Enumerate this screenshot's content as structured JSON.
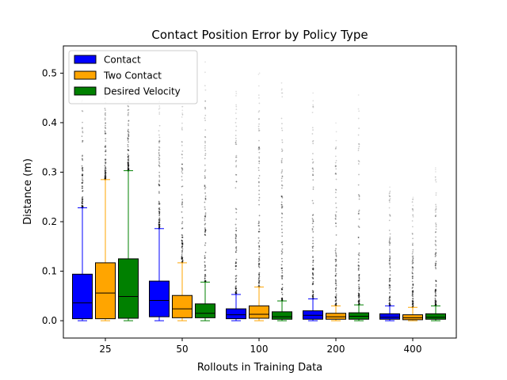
{
  "chart_data": {
    "type": "box",
    "title": "Contact Position Error by Policy Type",
    "xlabel": "Rollouts in Training Data",
    "ylabel": "Distance (m)",
    "categories": [
      "25",
      "50",
      "100",
      "200",
      "400"
    ],
    "ylim": [
      -0.035,
      0.555
    ],
    "yticks": [
      0.0,
      0.1,
      0.2,
      0.3,
      0.4,
      0.5
    ],
    "ytick_labels": [
      "0.0",
      "0.1",
      "0.2",
      "0.3",
      "0.4",
      "0.5"
    ],
    "legend_position": "top-left",
    "grid": false,
    "series": [
      {
        "name": "Contact",
        "color": "#0000ff",
        "boxes": [
          {
            "category": "25",
            "whislo": 0.0,
            "q1": 0.004,
            "med": 0.036,
            "q3": 0.094,
            "whishi": 0.228,
            "flier_max": 0.51
          },
          {
            "category": "50",
            "whislo": 0.0,
            "q1": 0.008,
            "med": 0.041,
            "q3": 0.08,
            "whishi": 0.186,
            "flier_max": 0.45
          },
          {
            "category": "100",
            "whislo": 0.0,
            "q1": 0.004,
            "med": 0.012,
            "q3": 0.024,
            "whishi": 0.053,
            "flier_max": 0.48
          },
          {
            "category": "200",
            "whislo": 0.0,
            "q1": 0.003,
            "med": 0.011,
            "q3": 0.02,
            "whishi": 0.044,
            "flier_max": 0.47
          },
          {
            "category": "400",
            "whislo": 0.0,
            "q1": 0.003,
            "med": 0.007,
            "q3": 0.014,
            "whishi": 0.03,
            "flier_max": 0.28
          }
        ]
      },
      {
        "name": "Two Contact",
        "color": "#ffa500",
        "boxes": [
          {
            "category": "25",
            "whislo": 0.0,
            "q1": 0.004,
            "med": 0.056,
            "q3": 0.117,
            "whishi": 0.285,
            "flier_max": 0.52
          },
          {
            "category": "50",
            "whislo": 0.0,
            "q1": 0.006,
            "med": 0.024,
            "q3": 0.051,
            "whishi": 0.117,
            "flier_max": 0.44
          },
          {
            "category": "100",
            "whislo": 0.0,
            "q1": 0.005,
            "med": 0.013,
            "q3": 0.03,
            "whishi": 0.068,
            "flier_max": 0.5
          },
          {
            "category": "200",
            "whislo": 0.0,
            "q1": 0.003,
            "med": 0.008,
            "q3": 0.015,
            "whishi": 0.03,
            "flier_max": 0.4
          },
          {
            "category": "400",
            "whislo": 0.0,
            "q1": 0.002,
            "med": 0.006,
            "q3": 0.012,
            "whishi": 0.027,
            "flier_max": 0.25
          }
        ]
      },
      {
        "name": "Desired Velocity",
        "color": "#008000",
        "boxes": [
          {
            "category": "25",
            "whislo": 0.0,
            "q1": 0.005,
            "med": 0.049,
            "q3": 0.125,
            "whishi": 0.303,
            "flier_max": 0.52
          },
          {
            "category": "50",
            "whislo": 0.0,
            "q1": 0.006,
            "med": 0.015,
            "q3": 0.034,
            "whishi": 0.078,
            "flier_max": 0.53
          },
          {
            "category": "100",
            "whislo": 0.0,
            "q1": 0.003,
            "med": 0.008,
            "q3": 0.018,
            "whishi": 0.04,
            "flier_max": 0.5
          },
          {
            "category": "200",
            "whislo": 0.0,
            "q1": 0.003,
            "med": 0.009,
            "q3": 0.016,
            "whishi": 0.032,
            "flier_max": 0.46
          },
          {
            "category": "400",
            "whislo": 0.0,
            "q1": 0.003,
            "med": 0.007,
            "q3": 0.014,
            "whishi": 0.03,
            "flier_max": 0.31
          }
        ]
      }
    ]
  }
}
